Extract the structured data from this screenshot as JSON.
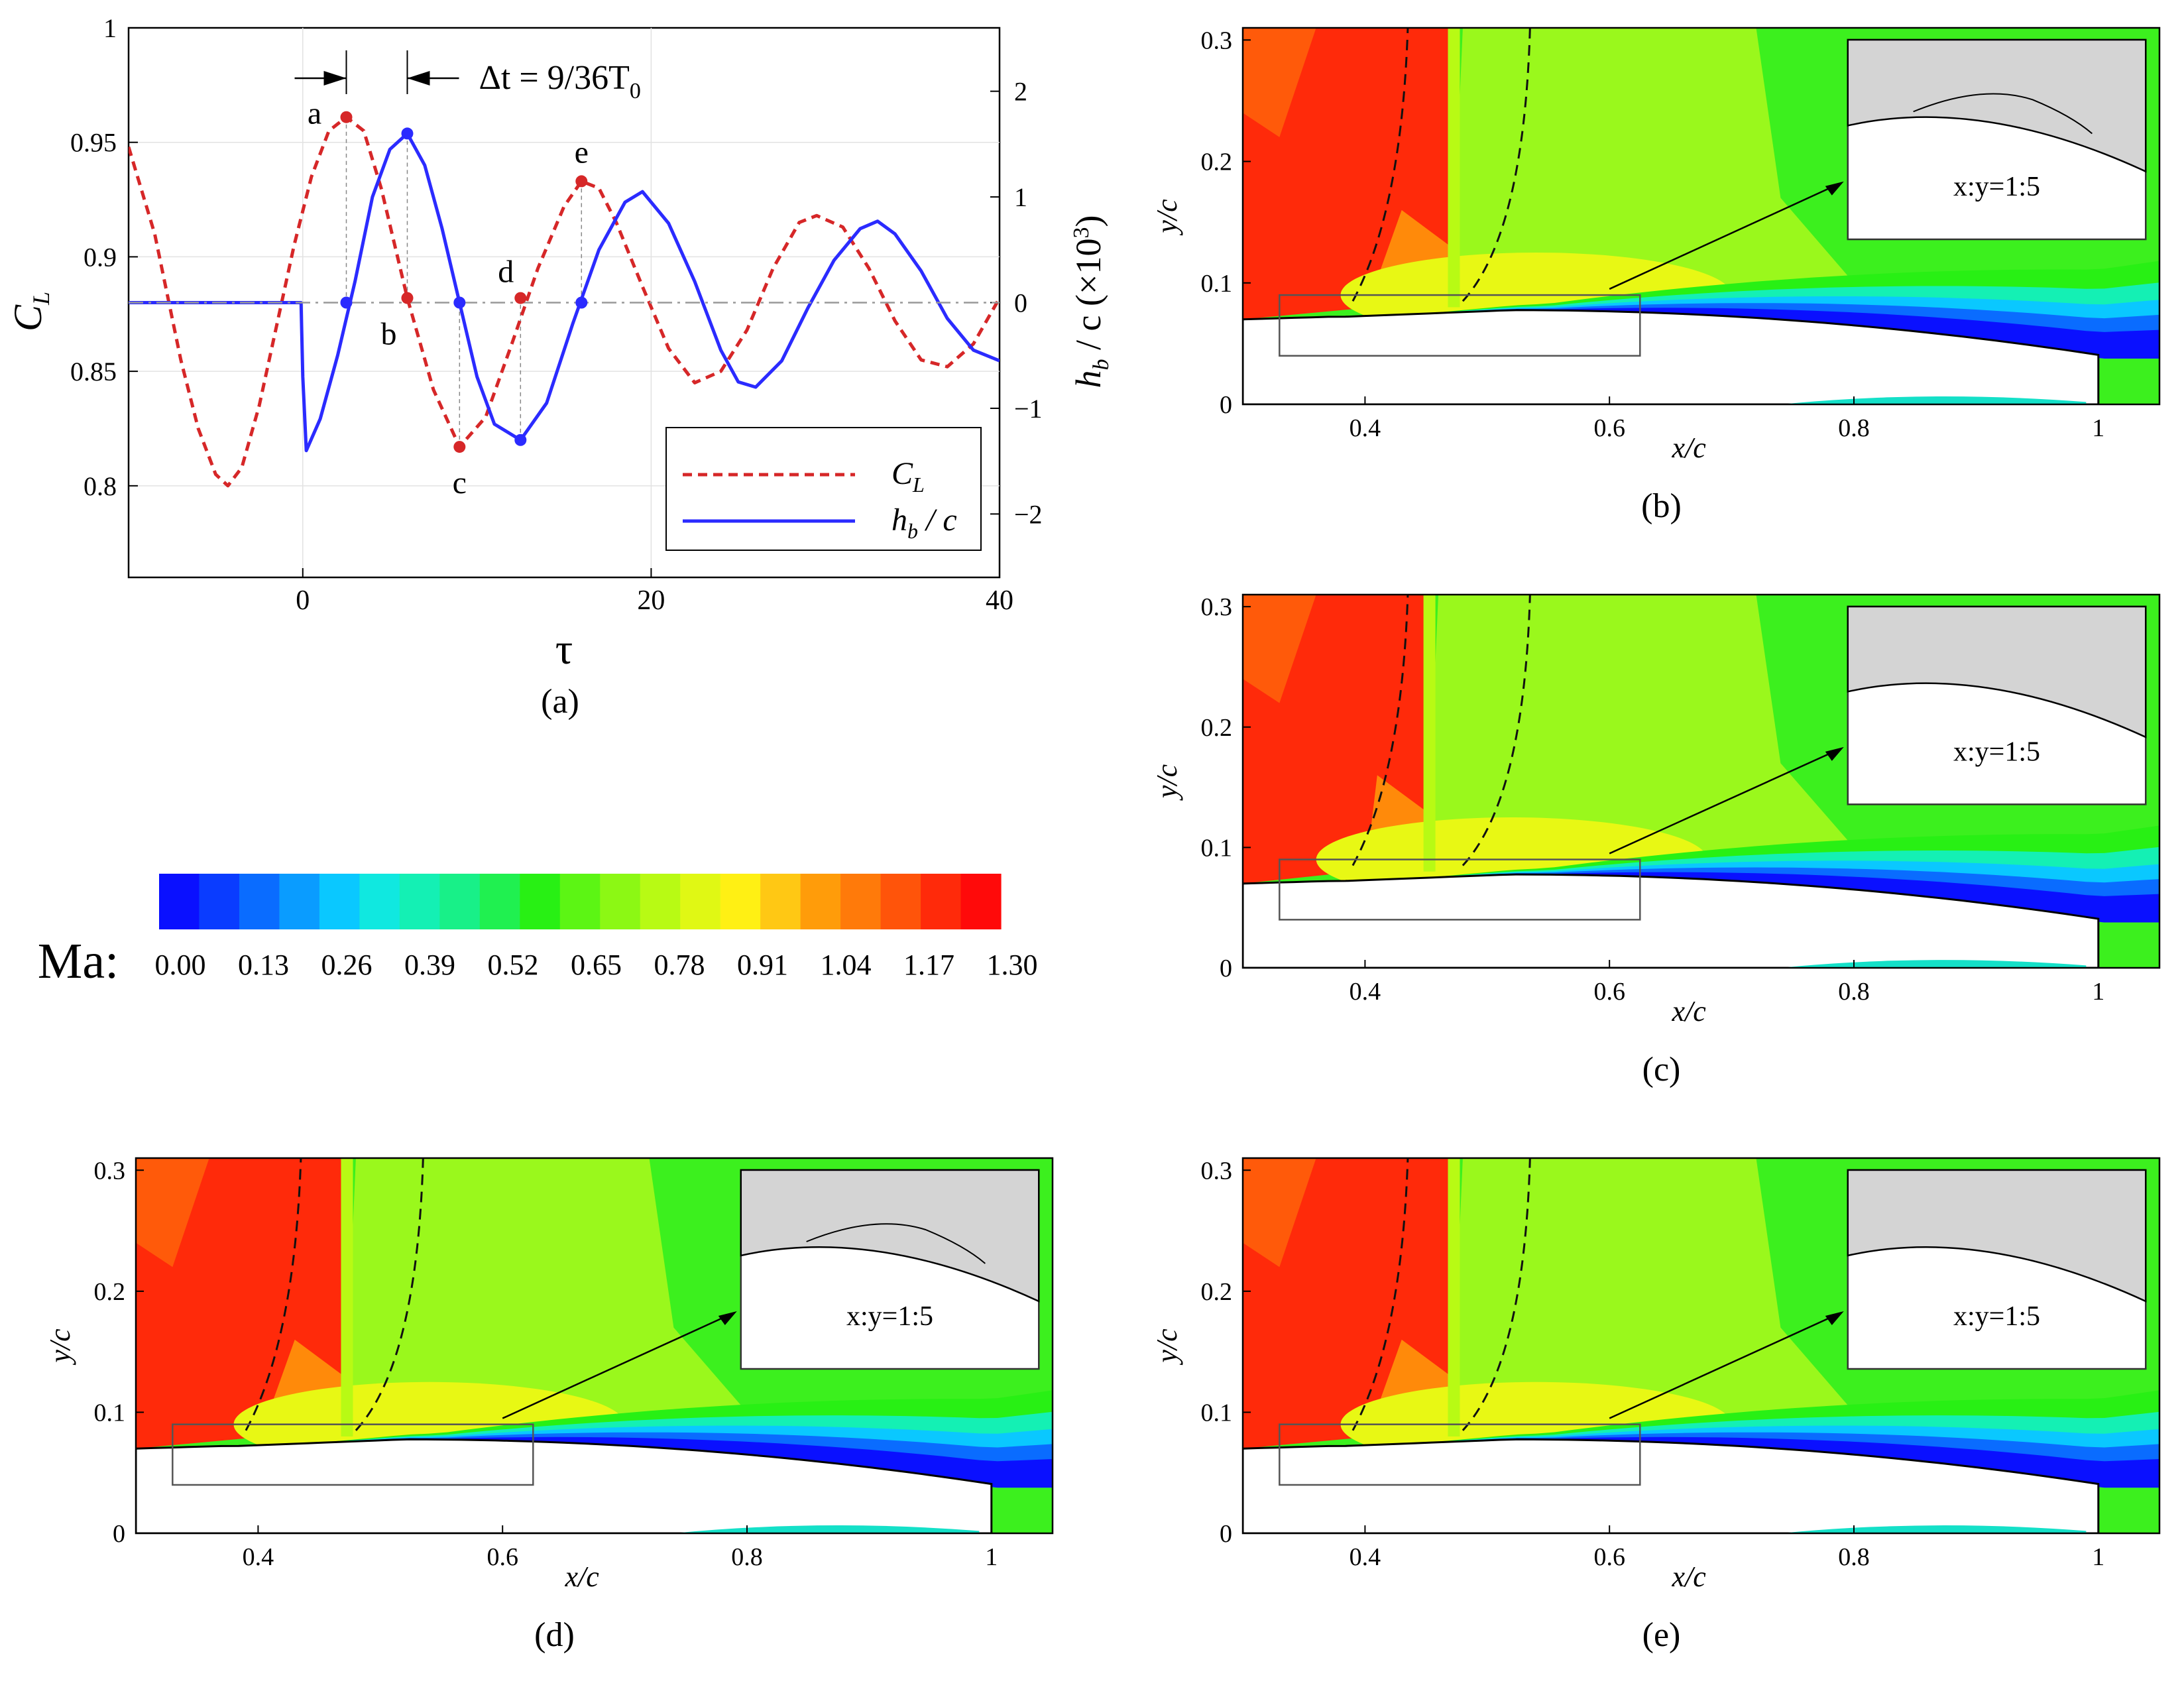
{
  "chart_data": [
    {
      "panel_label": "(a)",
      "type": "line",
      "xlabel": "τ",
      "ylabel_left": "C",
      "ylabel_left_sub": "L",
      "ylabel_right": "h",
      "ylabel_right_sub": "b",
      "ylabel_right_suffix": " / c (×10",
      "ylabel_right_sup": "3",
      "ylabel_right_close": ")",
      "xlim": [
        -10,
        40
      ],
      "ylim_left": [
        0.76,
        1.0
      ],
      "ylim_right": [
        -2.6,
        2.6
      ],
      "xticks": [
        "0",
        "20",
        "40"
      ],
      "yticks_left": [
        "0.8",
        "0.85",
        "0.9",
        "0.95",
        "1"
      ],
      "yticks_right": [
        "−2",
        "−1",
        "0",
        "1",
        "2"
      ],
      "annotation": {
        "text": "Δt = 9/36T",
        "sub": "0"
      },
      "legend": [
        {
          "label": "C",
          "sub": "L",
          "style": "dashed",
          "color": "#d62728"
        },
        {
          "label": "h",
          "sub": "b",
          "suffix": " / c",
          "style": "solid",
          "color": "#2b2bff"
        }
      ],
      "series": [
        {
          "name": "C_L",
          "axis": "left",
          "style": "dashed",
          "color": "#d62728",
          "x": [
            -10,
            -8.5,
            -7,
            -6,
            -5,
            -4.3,
            -3.5,
            -2.5,
            -1.5,
            -0.5,
            0.5,
            1.5,
            2.5,
            3.5,
            4.5,
            6,
            7.5,
            9,
            10.5,
            12,
            13.5,
            15,
            16,
            17,
            18,
            19.5,
            21,
            22.5,
            24,
            25.5,
            27,
            28.5,
            29.5,
            31,
            32.5,
            34,
            35.5,
            37,
            38.5,
            40
          ],
          "y": [
            0.948,
            0.91,
            0.855,
            0.825,
            0.805,
            0.8,
            0.808,
            0.835,
            0.87,
            0.905,
            0.935,
            0.955,
            0.961,
            0.955,
            0.93,
            0.882,
            0.842,
            0.817,
            0.83,
            0.862,
            0.895,
            0.922,
            0.933,
            0.93,
            0.915,
            0.887,
            0.86,
            0.845,
            0.85,
            0.868,
            0.895,
            0.915,
            0.918,
            0.913,
            0.895,
            0.872,
            0.855,
            0.852,
            0.862,
            0.882
          ]
        },
        {
          "name": "h_b/c",
          "axis": "right",
          "style": "solid",
          "color": "#2b2bff",
          "x": [
            -10,
            -0.1,
            0,
            0.2,
            1,
            2,
            3,
            4,
            5,
            6,
            7,
            8,
            9,
            10,
            11,
            12.5,
            14,
            15.5,
            17,
            18.5,
            19.5,
            21,
            22.5,
            24,
            25,
            26,
            27.5,
            29,
            30.5,
            32,
            33,
            34,
            35.5,
            37,
            38.5,
            40
          ],
          "y": [
            0,
            0,
            -0.7,
            -1.4,
            -1.1,
            -0.5,
            0.2,
            1.0,
            1.45,
            1.6,
            1.3,
            0.7,
            0,
            -0.7,
            -1.15,
            -1.3,
            -0.95,
            -0.2,
            0.5,
            0.95,
            1.05,
            0.75,
            0.2,
            -0.45,
            -0.75,
            -0.8,
            -0.55,
            -0.05,
            0.4,
            0.7,
            0.77,
            0.65,
            0.3,
            -0.15,
            -0.45,
            -0.55
          ]
        },
        {
          "name": "baseline",
          "axis": "right",
          "style": "dashdot",
          "color": "#999999",
          "x": [
            -10,
            40
          ],
          "y": [
            0,
            0
          ]
        }
      ],
      "markers": [
        {
          "label": "a",
          "tau": 2.5,
          "axis": "left",
          "value": 0.961,
          "color": "#d62728"
        },
        {
          "label": "b",
          "tau": 6.0,
          "axis": "left",
          "value": 0.882,
          "color": "#d62728"
        },
        {
          "label": "c",
          "tau": 9.0,
          "axis": "left",
          "value": 0.817,
          "color": "#d62728"
        },
        {
          "label": "d",
          "tau": 12.5,
          "axis": "left",
          "value": 0.882,
          "color": "#d62728"
        },
        {
          "label": "e",
          "tau": 16.0,
          "axis": "left",
          "value": 0.933,
          "color": "#d62728"
        },
        {
          "label": "",
          "tau": 2.5,
          "axis": "right",
          "value": 0,
          "color": "#2b2bff"
        },
        {
          "label": "",
          "tau": 6.0,
          "axis": "right",
          "value": 1.6,
          "color": "#2b2bff"
        },
        {
          "label": "",
          "tau": 9.0,
          "axis": "right",
          "value": 0,
          "color": "#2b2bff"
        },
        {
          "label": "",
          "tau": 12.5,
          "axis": "right",
          "value": -1.3,
          "color": "#2b2bff"
        },
        {
          "label": "",
          "tau": 16.0,
          "axis": "right",
          "value": 0,
          "color": "#2b2bff"
        }
      ]
    },
    {
      "type": "heatmap",
      "title": "Ma:",
      "ticks": [
        "0.00",
        "0.13",
        "0.26",
        "0.39",
        "0.52",
        "0.65",
        "0.78",
        "0.91",
        "1.04",
        "1.17",
        "1.30"
      ],
      "range": [
        0,
        1.3
      ],
      "colors": [
        "#0a10ff",
        "#0a3cff",
        "#0a6cff",
        "#0a9cff",
        "#0ac8ff",
        "#10e8e0",
        "#14f0b4",
        "#18f088",
        "#20f050",
        "#28f014",
        "#5cf514",
        "#8cf814",
        "#b8fa14",
        "#e0f814",
        "#fff014",
        "#ffc814",
        "#ff9c0a",
        "#ff7a0a",
        "#ff540a",
        "#ff2a0a",
        "#ff0a0a"
      ]
    },
    {
      "panel_label": "(b)",
      "type": "heatmap",
      "xlabel": "x/c",
      "ylabel": "y/c",
      "xlim": [
        0.3,
        1.05
      ],
      "ylim": [
        0,
        0.31
      ],
      "xticks": [
        "0.4",
        "0.6",
        "0.8",
        "1"
      ],
      "yticks": [
        "0",
        "0.1",
        "0.2",
        "0.3"
      ],
      "inset_label": "x:y=1:5",
      "shock_x": 0.47,
      "inset_bump": true
    },
    {
      "panel_label": "(c)",
      "type": "heatmap",
      "xlabel": "x/c",
      "ylabel": "y/c",
      "xlim": [
        0.3,
        1.05
      ],
      "ylim": [
        0,
        0.31
      ],
      "xticks": [
        "0.4",
        "0.6",
        "0.8",
        "1"
      ],
      "yticks": [
        "0",
        "0.1",
        "0.2",
        "0.3"
      ],
      "inset_label": "x:y=1:5",
      "shock_x": 0.45,
      "inset_bump": false
    },
    {
      "panel_label": "(d)",
      "type": "heatmap",
      "xlabel": "x/c",
      "ylabel": "y/c",
      "xlim": [
        0.3,
        1.05
      ],
      "ylim": [
        0,
        0.31
      ],
      "xticks": [
        "0.4",
        "0.6",
        "0.8",
        "1"
      ],
      "yticks": [
        "0",
        "0.1",
        "0.2",
        "0.3"
      ],
      "inset_label": "x:y=1:5",
      "shock_x": 0.47,
      "inset_bump": true
    },
    {
      "panel_label": "(e)",
      "type": "heatmap",
      "xlabel": "x/c",
      "ylabel": "y/c",
      "xlim": [
        0.3,
        1.05
      ],
      "ylim": [
        0,
        0.31
      ],
      "xticks": [
        "0.4",
        "0.6",
        "0.8",
        "1"
      ],
      "yticks": [
        "0",
        "0.1",
        "0.2",
        "0.3"
      ],
      "inset_label": "x:y=1:5",
      "shock_x": 0.47,
      "inset_bump": false
    }
  ]
}
